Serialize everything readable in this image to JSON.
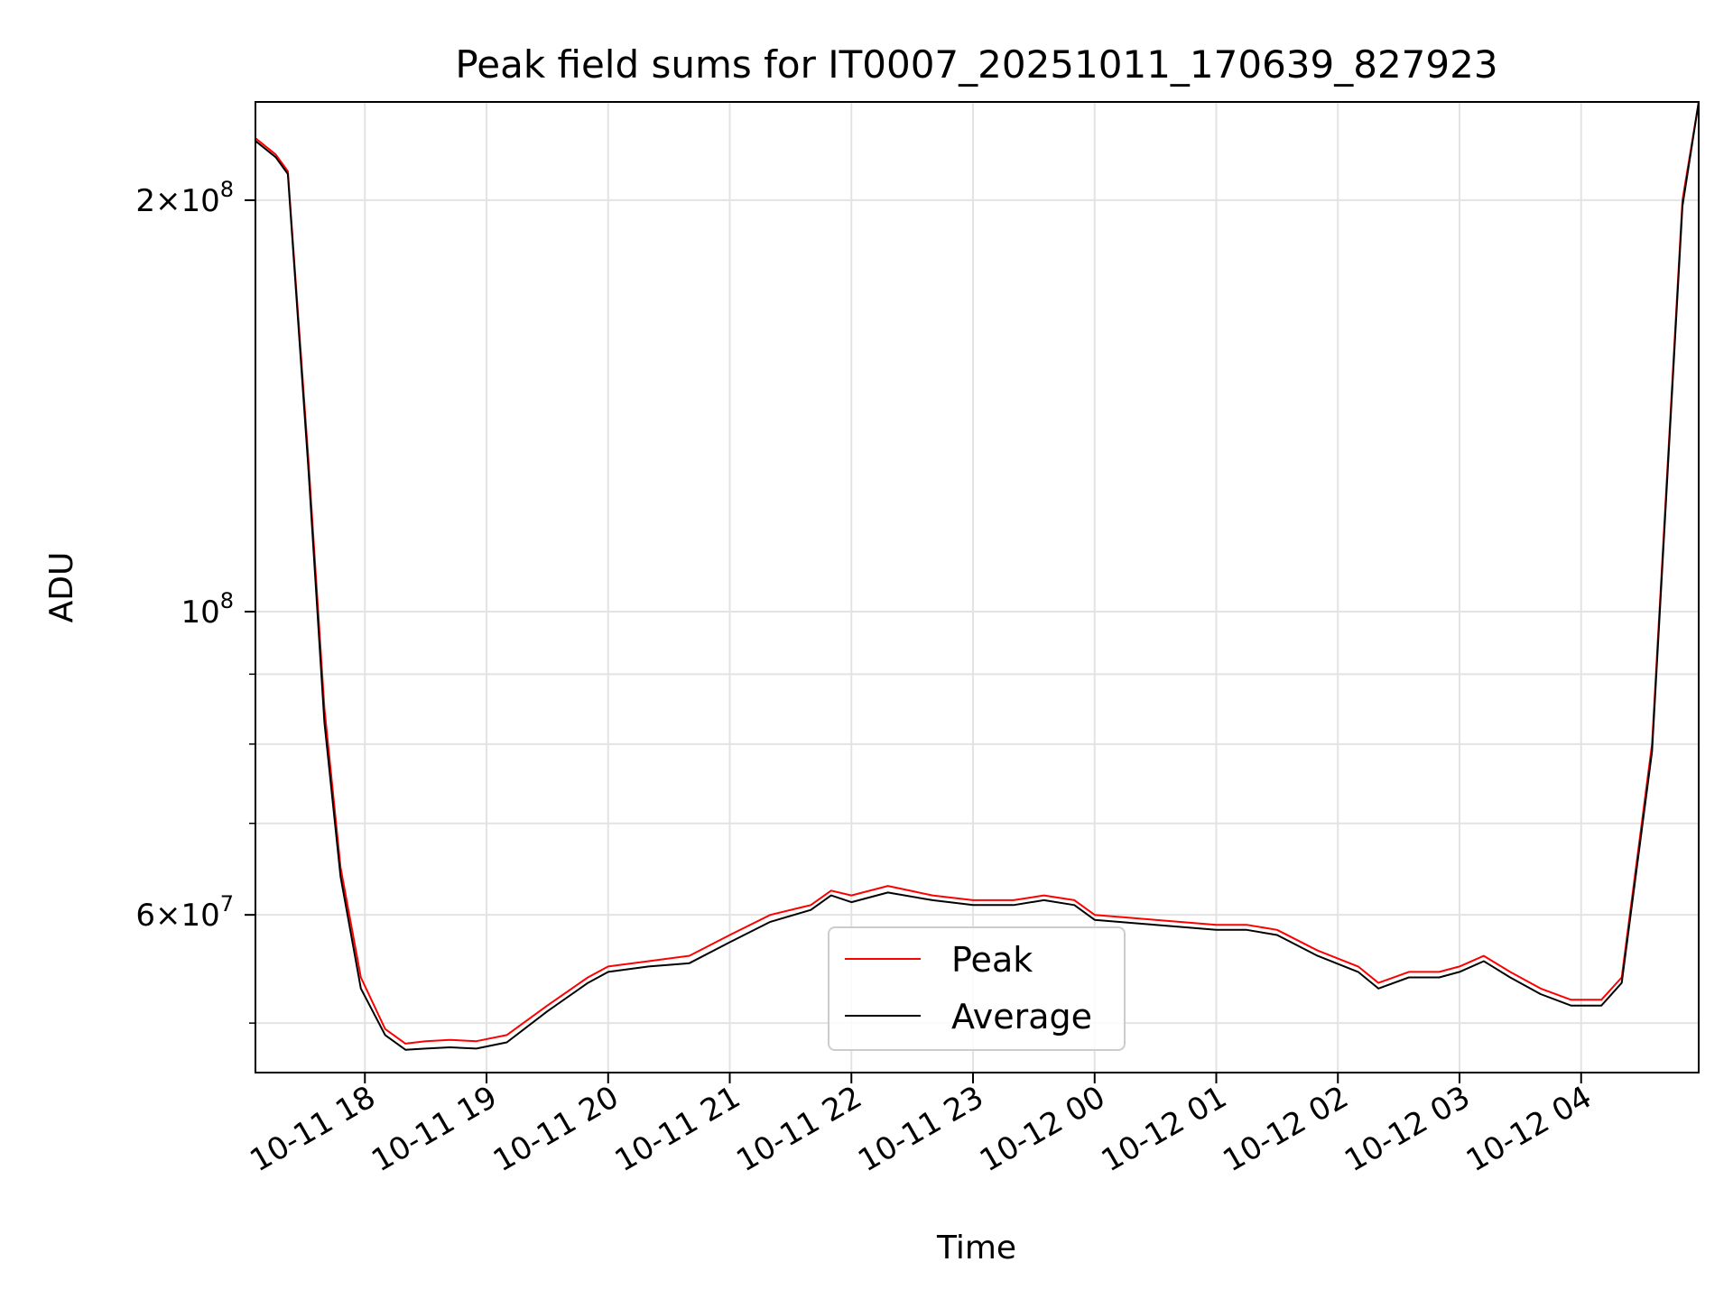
{
  "chart_data": {
    "type": "line",
    "title": "Peak field sums for IT0007_20251011_170639_827923",
    "xlabel": "Time",
    "ylabel": "ADU",
    "y_scale": "log",
    "grid": true,
    "legend_position": "lower-center",
    "x_tick_labels": [
      "10-11 18",
      "10-11 19",
      "10-11 20",
      "10-11 21",
      "10-11 22",
      "10-11 23",
      "10-12 00",
      "10-12 01",
      "10-12 02",
      "10-12 03",
      "10-12 04"
    ],
    "x_ticks": [
      "2025-10-11T18:00",
      "2025-10-11T19:00",
      "2025-10-11T20:00",
      "2025-10-11T21:00",
      "2025-10-11T22:00",
      "2025-10-11T23:00",
      "2025-10-12T00:00",
      "2025-10-12T01:00",
      "2025-10-12T02:00",
      "2025-10-12T03:00",
      "2025-10-12T04:00"
    ],
    "xlim": [
      "2025-10-11T17:06",
      "2025-10-12T04:58"
    ],
    "ylim": [
      46000000,
      236000000
    ],
    "y_major_ticks": [
      {
        "value": 60000000,
        "mant": "6",
        "exp": "7"
      },
      {
        "value": 100000000,
        "mant": "",
        "exp": "8"
      },
      {
        "value": 200000000,
        "mant": "2",
        "exp": "8"
      }
    ],
    "y_minor_ticks": [
      50000000,
      70000000,
      80000000,
      90000000
    ],
    "series": [
      {
        "name": "Peak",
        "color": "#ff0000",
        "x": [
          "2025-10-11T17:06",
          "2025-10-11T17:16",
          "2025-10-11T17:22",
          "2025-10-11T17:32",
          "2025-10-11T17:40",
          "2025-10-11T17:48",
          "2025-10-11T17:58",
          "2025-10-11T18:10",
          "2025-10-11T18:20",
          "2025-10-11T18:30",
          "2025-10-11T18:42",
          "2025-10-11T18:55",
          "2025-10-11T19:10",
          "2025-10-11T19:30",
          "2025-10-11T19:50",
          "2025-10-11T20:00",
          "2025-10-11T20:20",
          "2025-10-11T20:40",
          "2025-10-11T21:00",
          "2025-10-11T21:20",
          "2025-10-11T21:40",
          "2025-10-11T21:50",
          "2025-10-11T22:00",
          "2025-10-11T22:18",
          "2025-10-11T22:40",
          "2025-10-11T23:00",
          "2025-10-11T23:20",
          "2025-10-11T23:35",
          "2025-10-11T23:50",
          "2025-10-12T00:00",
          "2025-10-12T00:30",
          "2025-10-12T01:00",
          "2025-10-12T01:15",
          "2025-10-12T01:30",
          "2025-10-12T01:50",
          "2025-10-12T02:10",
          "2025-10-12T02:20",
          "2025-10-12T02:35",
          "2025-10-12T02:50",
          "2025-10-12T03:00",
          "2025-10-12T03:12",
          "2025-10-12T03:25",
          "2025-10-12T03:40",
          "2025-10-12T03:55",
          "2025-10-12T04:10",
          "2025-10-12T04:20",
          "2025-10-12T04:35",
          "2025-10-12T04:50",
          "2025-10-12T04:58"
        ],
        "values": [
          222000000,
          216000000,
          210000000,
          130000000,
          85000000,
          65000000,
          54000000,
          49500000,
          48300000,
          48500000,
          48600000,
          48500000,
          49000000,
          51500000,
          54000000,
          55000000,
          55500000,
          56000000,
          58000000,
          60000000,
          61000000,
          62500000,
          62000000,
          63000000,
          62000000,
          61500000,
          61500000,
          62000000,
          61500000,
          60000000,
          59500000,
          59000000,
          59000000,
          58500000,
          56500000,
          55000000,
          53500000,
          54500000,
          54500000,
          55000000,
          56000000,
          54500000,
          53000000,
          52000000,
          52000000,
          54000000,
          80000000,
          200000000,
          236000000
        ]
      },
      {
        "name": "Average",
        "color": "#000000",
        "x": [
          "2025-10-11T17:06",
          "2025-10-11T17:16",
          "2025-10-11T17:22",
          "2025-10-11T17:32",
          "2025-10-11T17:40",
          "2025-10-11T17:48",
          "2025-10-11T17:58",
          "2025-10-11T18:10",
          "2025-10-11T18:20",
          "2025-10-11T18:30",
          "2025-10-11T18:42",
          "2025-10-11T18:55",
          "2025-10-11T19:10",
          "2025-10-11T19:30",
          "2025-10-11T19:50",
          "2025-10-11T20:00",
          "2025-10-11T20:20",
          "2025-10-11T20:40",
          "2025-10-11T21:00",
          "2025-10-11T21:20",
          "2025-10-11T21:40",
          "2025-10-11T21:50",
          "2025-10-11T22:00",
          "2025-10-11T22:18",
          "2025-10-11T22:40",
          "2025-10-11T23:00",
          "2025-10-11T23:20",
          "2025-10-11T23:35",
          "2025-10-11T23:50",
          "2025-10-12T00:00",
          "2025-10-12T00:30",
          "2025-10-12T01:00",
          "2025-10-12T01:15",
          "2025-10-12T01:30",
          "2025-10-12T01:50",
          "2025-10-12T02:10",
          "2025-10-12T02:20",
          "2025-10-12T02:35",
          "2025-10-12T02:50",
          "2025-10-12T03:00",
          "2025-10-12T03:12",
          "2025-10-12T03:25",
          "2025-10-12T03:40",
          "2025-10-12T03:55",
          "2025-10-12T04:10",
          "2025-10-12T04:20",
          "2025-10-12T04:35",
          "2025-10-12T04:50",
          "2025-10-12T04:58"
        ],
        "values": [
          221000000,
          215000000,
          209000000,
          128000000,
          83000000,
          64000000,
          53000000,
          49000000,
          47800000,
          47900000,
          48000000,
          47900000,
          48400000,
          51000000,
          53500000,
          54500000,
          55000000,
          55300000,
          57300000,
          59300000,
          60500000,
          62000000,
          61300000,
          62300000,
          61500000,
          61000000,
          61000000,
          61500000,
          61000000,
          59500000,
          59000000,
          58500000,
          58500000,
          58000000,
          56000000,
          54500000,
          53000000,
          54000000,
          54000000,
          54500000,
          55500000,
          54000000,
          52500000,
          51500000,
          51500000,
          53500000,
          79000000,
          198000000,
          236000000
        ]
      }
    ]
  }
}
